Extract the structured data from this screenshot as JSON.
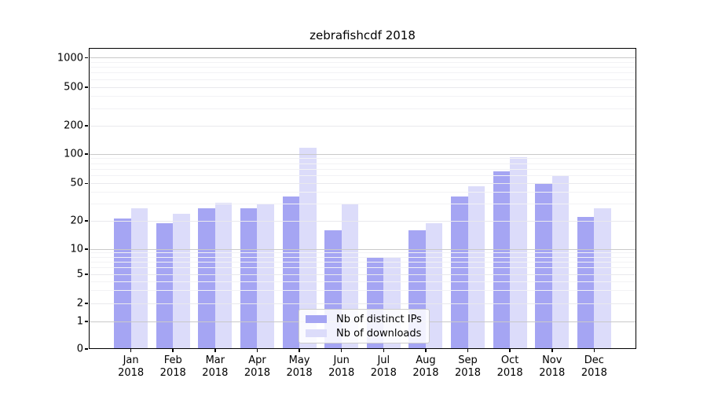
{
  "figure_title": "zebrafishcdf 2018",
  "chart_data": {
    "type": "bar",
    "title": "zebrafishcdf 2018",
    "categories": [
      "Jan 2018",
      "Feb 2018",
      "Mar 2018",
      "Apr 2018",
      "May 2018",
      "Jun 2018",
      "Jul 2018",
      "Aug 2018",
      "Sep 2018",
      "Oct 2018",
      "Nov 2018",
      "Dec 2018"
    ],
    "series": [
      {
        "name": "Nb of distinct IPs",
        "color": "#a5a5f3",
        "values": [
          21,
          19,
          27,
          27,
          36,
          16,
          8,
          16,
          36,
          67,
          50,
          22
        ]
      },
      {
        "name": "Nb of downloads",
        "color": "#dcdcfa",
        "values": [
          27,
          24,
          31,
          30,
          116,
          30,
          8,
          19,
          47,
          92,
          61,
          27
        ]
      }
    ],
    "xlabel": "",
    "ylabel": "",
    "y_scale": "symlog",
    "y_ticks": [
      0,
      1,
      2,
      5,
      10,
      20,
      50,
      100,
      200,
      500,
      1000
    ],
    "ylim": [
      0,
      1000
    ],
    "bar_width": 0.4,
    "grid": true,
    "legend_position": "lower center"
  },
  "colors": {
    "background": "#ffffff",
    "spine": "#000000",
    "major_grid": "#c9c9c9",
    "mid_grid": "#e9e9ed",
    "minor_grid": "#f2f2f5",
    "text": "#000000"
  }
}
